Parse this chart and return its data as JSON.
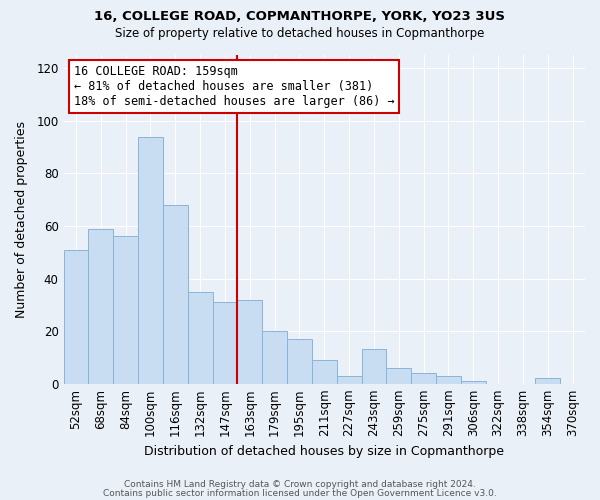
{
  "title1": "16, COLLEGE ROAD, COPMANTHORPE, YORK, YO23 3US",
  "title2": "Size of property relative to detached houses in Copmanthorpe",
  "xlabel": "Distribution of detached houses by size in Copmanthorpe",
  "ylabel": "Number of detached properties",
  "bar_labels": [
    "52sqm",
    "68sqm",
    "84sqm",
    "100sqm",
    "116sqm",
    "132sqm",
    "147sqm",
    "163sqm",
    "179sqm",
    "195sqm",
    "211sqm",
    "227sqm",
    "243sqm",
    "259sqm",
    "275sqm",
    "291sqm",
    "306sqm",
    "322sqm",
    "338sqm",
    "354sqm",
    "370sqm"
  ],
  "bar_heights": [
    51,
    59,
    56,
    94,
    68,
    35,
    31,
    32,
    20,
    17,
    9,
    3,
    13,
    6,
    4,
    3,
    1,
    0,
    0,
    2,
    0
  ],
  "bar_color": "#c9ddf2",
  "bar_edge_color": "#8ab4d8",
  "vline_index": 7,
  "annotation_title": "16 COLLEGE ROAD: 159sqm",
  "annotation_line1": "← 81% of detached houses are smaller (381)",
  "annotation_line2": "18% of semi-detached houses are larger (86) →",
  "annotation_box_color": "#ffffff",
  "annotation_box_edge_color": "#cc0000",
  "vline_color": "#cc0000",
  "ylim": [
    0,
    125
  ],
  "yticks": [
    0,
    20,
    40,
    60,
    80,
    100,
    120
  ],
  "footer1": "Contains HM Land Registry data © Crown copyright and database right 2024.",
  "footer2": "Contains public sector information licensed under the Open Government Licence v3.0.",
  "bg_color": "#eaf0f8",
  "grid_color": "#ffffff"
}
